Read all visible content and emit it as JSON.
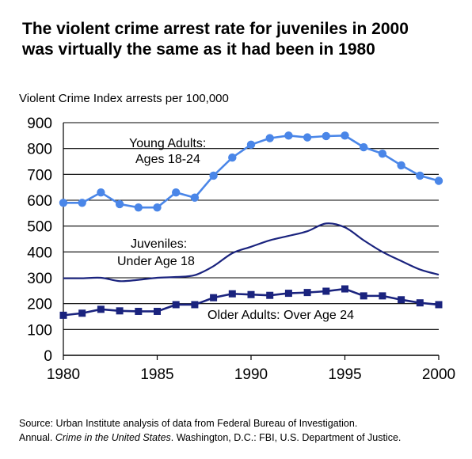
{
  "title_lines": [
    "The violent crime arrest rate for juveniles in 2000",
    "was virtually the same as it had been in 1980"
  ],
  "source": {
    "line1": "Source: Urban Institute analysis of data from Federal Bureau of Investigation.",
    "line2_a": "Annual. ",
    "line2_italic": "Crime in the United States",
    "line2_b": ". Washington, D.C.: FBI, U.S. Department of Justice."
  },
  "chart_data": {
    "type": "line",
    "ylabel": "Violent Crime Index arrests per 100,000",
    "xlabel": "",
    "xlim": [
      1980,
      2000
    ],
    "ylim": [
      0,
      900
    ],
    "x_ticks": [
      "1980",
      "1985",
      "1990",
      "1995",
      "2000"
    ],
    "y_ticks": [
      "0",
      "100",
      "200",
      "300",
      "400",
      "500",
      "600",
      "700",
      "800",
      "900"
    ],
    "grid": "horizontal",
    "x": [
      1980,
      1981,
      1982,
      1983,
      1984,
      1985,
      1986,
      1987,
      1988,
      1989,
      1990,
      1991,
      1992,
      1993,
      1994,
      1995,
      1996,
      1997,
      1998,
      1999,
      2000
    ],
    "series": [
      {
        "key": "young_adults",
        "label_lines": [
          "Young Adults:",
          "Ages 18-24"
        ],
        "marker": "circle",
        "color": "#4a86e8",
        "values": [
          590,
          590,
          630,
          585,
          572,
          572,
          630,
          610,
          695,
          765,
          815,
          840,
          850,
          843,
          848,
          850,
          805,
          780,
          735,
          695,
          675
        ]
      },
      {
        "key": "juveniles",
        "label_lines": [
          "Juveniles:",
          "Under Age 18"
        ],
        "marker": "none",
        "color": "#1a237e",
        "values": [
          298,
          298,
          300,
          287,
          292,
          300,
          303,
          310,
          345,
          395,
          420,
          445,
          462,
          480,
          510,
          495,
          445,
          400,
          365,
          332,
          312
        ]
      },
      {
        "key": "older_adults",
        "label_lines": [
          "Older Adults: Over Age 24"
        ],
        "marker": "square",
        "color": "#1a237e",
        "values": [
          155,
          163,
          178,
          172,
          170,
          170,
          196,
          196,
          223,
          238,
          235,
          232,
          240,
          243,
          248,
          257,
          230,
          230,
          215,
          203,
          196
        ]
      }
    ]
  }
}
